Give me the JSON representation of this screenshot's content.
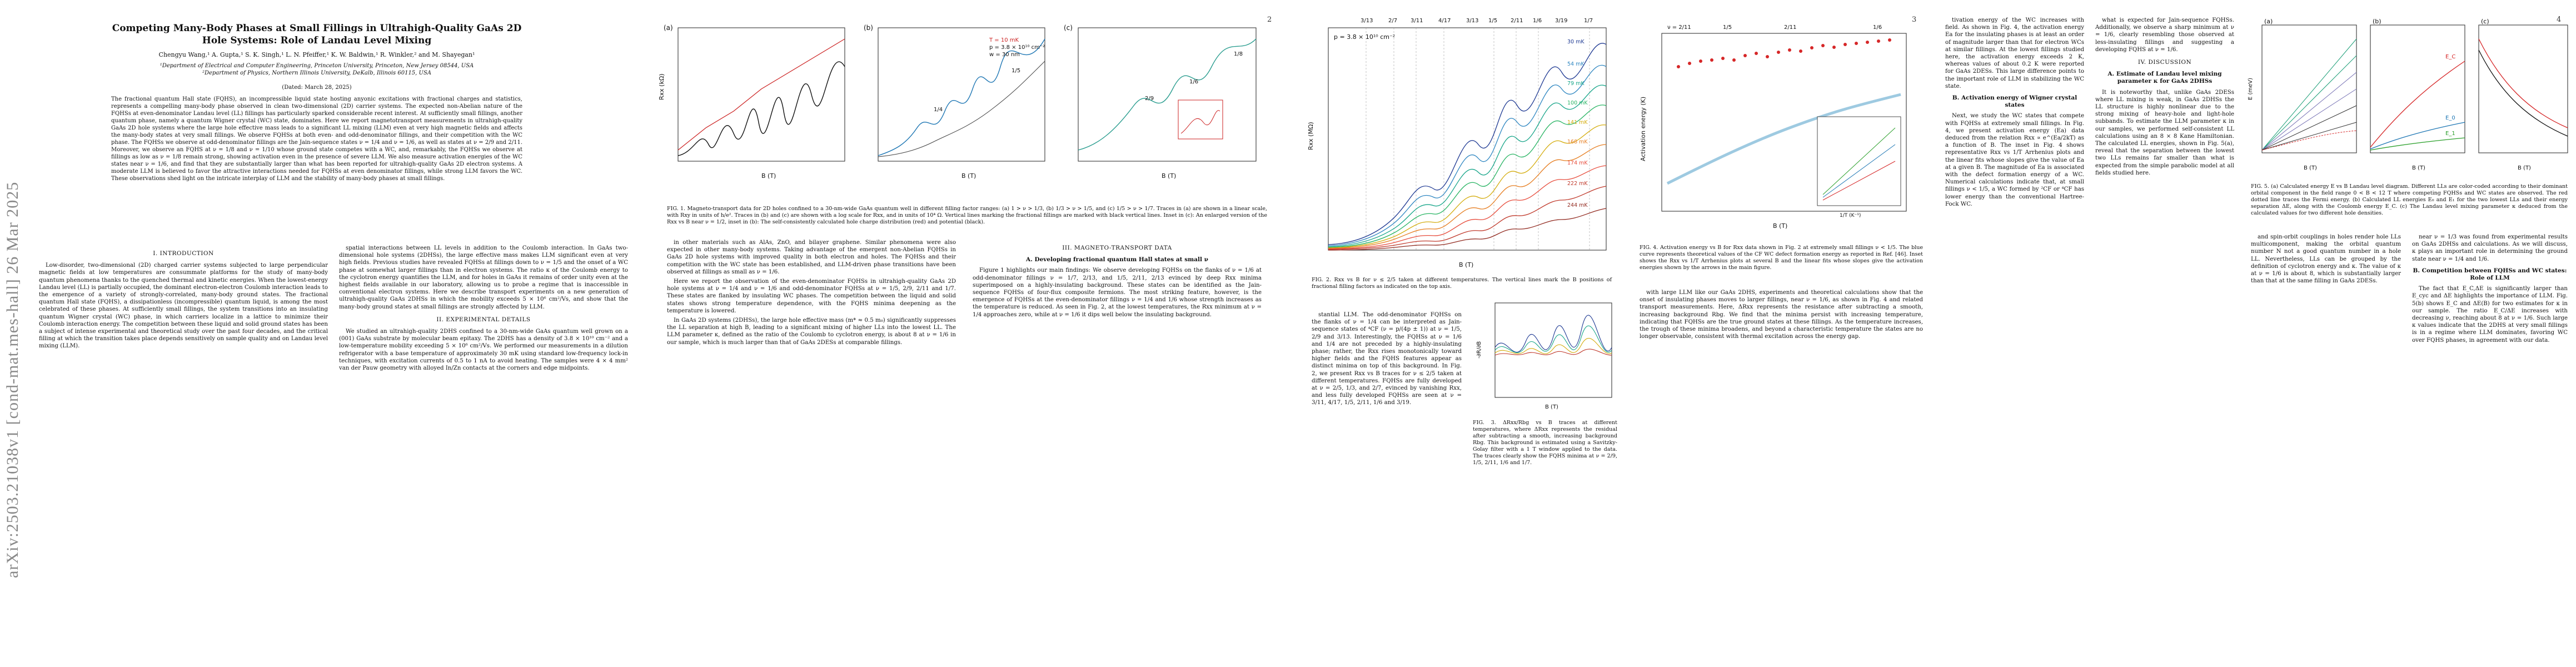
{
  "arxiv_stamp": "arXiv:2503.21038v1  [cond-mat.mes-hall]  26 Mar 2025",
  "page_numbers": [
    "2",
    "3",
    "4",
    "5"
  ],
  "title": "Competing Many-Body Phases at Small Fillings in Ultrahigh-Quality GaAs 2D Hole Systems: Role of Landau Level Mixing",
  "authors": "Chengyu Wang,¹ A. Gupta,¹ S. K. Singh,¹ L. N. Pfeiffer,¹ K. W. Baldwin,¹ R. Winkler,² and M. Shayegan¹",
  "affiliations": [
    "¹Department of Electrical and Computer Engineering, Princeton University, Princeton, New Jersey 08544, USA",
    "²Department of Physics, Northern Illinois University, DeKalb, Illinois 60115, USA"
  ],
  "date": "(Dated: March 28, 2025)",
  "abstract": "The fractional quantum Hall state (FQHS), an incompressible liquid state hosting anyonic excitations with fractional charges and statistics, represents a compelling many-body phase observed in clean two-dimensional (2D) carrier systems. The expected non-Abelian nature of the FQHSs at even-denominator Landau level (LL) fillings has particularly sparked considerable recent interest. At sufficiently small fillings, another quantum phase, namely a quantum Wigner crystal (WC) state, dominates. Here we report magnetotransport measurements in ultrahigh-quality GaAs 2D hole systems where the large hole effective mass leads to a significant LL mixing (LLM) even at very high magnetic fields and affects the many-body states at very small fillings. We observe FQHSs at both even- and odd-denominator fillings, and their competition with the WC phase. The FQHSs we observe at odd-denominator fillings are the Jain-sequence states ν = 1/4 and ν = 1/6, as well as states at ν = 2/9 and 2/11. Moreover, we observe an FQHS at ν = 1/8 and ν = 1/10 whose ground state competes with a WC, and, remarkably, the FQHSs we observe at fillings as low as ν = 1/8 remain strong, showing activation even in the presence of severe LLM. We also measure activation energies of the WC states near ν = 1/6, and find that they are substantially larger than what has been reported for ultrahigh-quality GaAs 2D electron systems. A moderate LLM is believed to favor the attractive interactions needed for FQHSs at even denominator fillings, while strong LLM favors the WC. These observations shed light on the intricate interplay of LLM and the stability of many-body phases at small fillings.",
  "p1": {
    "intro_heading": "I.  INTRODUCTION",
    "intro_left": "Low-disorder, two-dimensional (2D) charged carrier systems subjected to large perpendicular magnetic fields at low temperatures are consummate platforms for the study of many-body quantum phenomena thanks to the quenched thermal and kinetic energies. When the lowest-energy Landau level (LL) is partially occupied, the dominant electron-electron Coulomb interaction leads to the emergence of a variety of strongly-correlated, many-body ground states. The fractional quantum Hall state (FQHS), a dissipationless (incompressible) quantum liquid, is among the most celebrated of these phases. At sufficiently small fillings, the system transitions into an insulating quantum Wigner crystal (WC) phase, in which carriers localize in a lattice to minimize their Coulomb interaction energy. The competition between these liquid and solid ground states has been a subject of intense experimental and theoretical study over the past four decades, and the critical filling at which the transition takes place depends sensitively on sample quality and on Landau level mixing (LLM).",
    "intro_right": "spatial interactions between LL levels in addition to the Coulomb interaction. In GaAs two-dimensional hole systems (2DHSs), the large effective mass makes LLM significant even at very high fields. Previous studies have revealed FQHSs at fillings down to ν = 1/5 and the onset of a WC phase at somewhat larger fillings than in electron systems. The ratio κ of the Coulomb energy to the cyclotron energy quantifies the LLM, and for holes in GaAs it remains of order unity even at the highest fields available in our laboratory, allowing us to probe a regime that is inaccessible in conventional electron systems. Here we describe transport experiments on a new generation of ultrahigh-quality GaAs 2DHSs in which the mobility exceeds 5 × 10⁶ cm²/Vs, and show that the many-body ground states at small fillings are strongly affected by LLM.",
    "exp_heading": "II.  EXPERIMENTAL DETAILS",
    "exp_text": "We studied an ultrahigh-quality 2DHS confined to a 30-nm-wide GaAs quantum well grown on a (001) GaAs substrate by molecular beam epitaxy. The 2DHS has a density of 3.8 × 10¹⁰ cm⁻² and a low-temperature mobility exceeding 5 × 10⁶ cm²/Vs. We performed our measurements in a dilution refrigerator with a base temperature of approximately 30 mK using standard low-frequency lock-in techniques, with excitation currents of 0.5 to 1 nA to avoid heating. The samples were 4 × 4 mm² van der Pauw geometry with alloyed In/Zn contacts at the corners and edge midpoints."
  },
  "fig1": {
    "panels": [
      "(a)",
      "(b)",
      "(c)"
    ],
    "xlabel": "B (T)",
    "ylabel": "Rxx (kΩ)",
    "legend": [
      "T = 10 mK",
      "p = 3.8 × 10¹⁰ cm⁻²",
      "w = 30 nm"
    ],
    "annotations": [
      "1/4",
      "1/5",
      "2/9",
      "1/6",
      "1/8"
    ],
    "caption": "FIG. 1. Magneto-transport data for 2D holes confined to a 30-nm-wide GaAs quantum well in different filling factor ranges: (a) 1 > ν > 1/3, (b) 1/3 > ν > 1/5, and (c) 1/5 > ν > 1/7. Traces in (a) are shown in a linear scale, with Rxy in units of h/e². Traces in (b) and (c) are shown with a log scale for Rxx, and in units of 10⁴ Ω. Vertical lines marking the fractional fillings are marked with black vertical lines. Inset in (c): An enlarged version of the Rxx vs B near ν = 1/2, inset in (b): The self-consistently calculated hole charge distribution (red) and potential (black)."
  },
  "p2": {
    "col_left_top": "in other materials such as AlAs, ZnO, and bilayer graphene. Similar phenomena were also expected in other many-body systems. Taking advantage of the emergent non-Abelian FQHSs in GaAs 2D hole systems with improved quality in both electron and holes. The FQHSs and their competition with the WC state has been established, and LLM-driven phase transitions have been observed at fillings as small as ν = 1/6.",
    "col_left_mid": "Here we report the observation of the even-denominator FQHSs in ultrahigh-quality GaAs 2D hole systems at ν = 1/4 and ν = 1/6 and odd-denominator FQHSs at ν = 1/5, 2/9, 2/11 and 1/7. These states are flanked by insulating WC phases. The competition between the liquid and solid states shows strong temperature dependence, with the FQHS minima deepening as the temperature is lowered.",
    "col_left_bottom": "In GaAs 2D systems (2DHSs), the large hole effective mass (m* ≈ 0.5 m₀) significantly suppresses the LL separation at high B, leading to a significant mixing of higher LLs into the lowest LL. The LLM parameter κ, defined as the ratio of the Coulomb to cyclotron energy, is about 8 at ν = 1/6 in our sample, which is much larger than that of GaAs 2DESs at comparable fillings.",
    "section_heading": "III.  MAGNETO-TRANSPORT DATA",
    "subsection_heading": "A.  Developing fractional quantum Hall states at small ν",
    "col_right": "Figure 1 highlights our main findings: We observe developing FQHSs on the flanks of ν = 1/6 at odd-denominator fillings ν = 1/7, 2/13, and 1/5, 2/11, 2/13 evinced by deep Rxx minima superimposed on a highly-insulating background. These states can be identified as the Jain-sequence FQHSs of four-flux composite fermions. The most striking feature, however, is the emergence of FQHSs at the even-denominator fillings ν = 1/4 and 1/6 whose strength increases as the temperature is reduced. As seen in Fig. 2, at the lowest temperatures, the Rxx minimum at ν = 1/4 approaches zero, while at ν = 1/6 it dips well below the insulating background."
  },
  "fig2": {
    "label": "p = 3.8 × 10¹⁰ cm⁻²",
    "xlabel": "B (T)",
    "ylabel": "Rxx (MΩ)",
    "top_fillings": [
      "3/13",
      "2/7",
      "3/11",
      "4/17",
      "3/13",
      "1/5",
      "2/11",
      "1/6",
      "3/19",
      "1/7"
    ],
    "temps": [
      "30 mK",
      "54 mK",
      "79 mK",
      "100 mK",
      "141 mK",
      "168 mK",
      "174 mK",
      "222 mK",
      "244 mK"
    ],
    "caption": "FIG. 2. Rxx vs B for ν ≤ 2/5 taken at different temperatures. The vertical lines mark the B positions of fractional filling factors as indicated on the top axis."
  },
  "fig3": {
    "xlabel": "B (T)",
    "ylabel": "-∂R/∂B",
    "caption": "FIG. 3. ΔRxx/Rbg vs B traces at different temperatures, where ΔRxx represents the residual after subtracting a smooth, increasing background Rbg. This background is estimated using a Savitzky-Golay filter with a 1 T window applied to the data. The traces clearly show the FQHS minima at ν = 2/9, 1/5, 2/11, 1/6 and 1/7."
  },
  "p3": {
    "col_left": "stantial LLM. The odd-denominator FQHSs on the flanks of ν = 1/4 can be interpreted as Jain-sequence states of ⁴CF (ν = p/(4p ± 1)) at ν = 1/5, 2/9 and 3/13. Interestingly, the FQHSs at ν = 1/6 and 1/4 are not preceded by a highly-insulating phase; rather, the Rxx rises monotonically toward higher fields and the FQHS features appear as distinct minima on top of this background. In Fig. 2, we present Rxx vs B traces for ν ≤ 2/5 taken at different temperatures. FQHSs are fully developed at ν = 2/5, 1/3, and 2/7, evinced by vanishing Rxx, and less fully developed FQHSs are seen at ν = 3/11, 4/17, 1/5, 2/11, 1/6 and 3/19.",
    "col_right": "with large LLM like our GaAs 2DHS, experiments and theoretical calculations show that the onset of insulating phases moves to larger fillings, near ν = 1/6, as shown in Fig. 4 and related transport measurements. Here, ΔRxx represents the resistance after subtracting a smooth, increasing background Rbg. We find that the minima persist with increasing temperature, indicating that FQHSs are the true ground states at these fillings. As the temperature increases, the trough of these minima broadens, and beyond a characteristic temperature the states are no longer observable, consistent with thermal excitation across the energy gap."
  },
  "fig4": {
    "xlabel": "B (T)",
    "ylabel": "Activation energy (K)",
    "top_labels": [
      "ν = 2/11",
      "1/5",
      "2/11",
      "1/6"
    ],
    "inset_xlabel": "1/T (K⁻¹)",
    "caption": "FIG. 4. Activation energy vs B for Rxx data shown in Fig. 2 at extremely small fillings ν < 1/5. The blue curve represents theoretical values of the CF WC defect formation energy as reported in Ref. [46]. Inset shows the Rxx vs 1/T Arrhenius plots at several B and the linear fits whose slopes give the activation energies shown by the arrows in the main figure."
  },
  "p4": {
    "col_left_top": "tivation energy of the WC increases with field. As shown in Fig. 4, the activation energy Ea for the insulating phases is at least an order of magnitude larger than that for electron WCs at similar fillings. At the lowest fillings studied here, the activation energy exceeds 2 K, whereas values of about 0.2 K were reported for GaAs 2DESs. This large difference points to the important role of LLM in stabilizing the WC state.",
    "section_b_heading": "B.  Activation energy of Wigner crystal states",
    "col_left_mid": "Next, we study the WC states that compete with FQHSs at extremely small fillings. In Fig. 4, we present activation energy (Ea) data deduced from the relation Rxx ∝ e^(Ea/2kT) as a function of B. The inset in Fig. 4 shows representative Rxx vs 1/T Arrhenius plots and the linear fits whose slopes give the value of Ea at a given B. The magnitude of Ea is associated with the defect formation energy of a WC. Numerical calculations indicate that, at small fillings ν < 1/5, a WC formed by ²CF or ⁴CF has lower energy than the conventional Hartree-Fock WC.",
    "col_right": "what is expected for Jain-sequence FQHSs. Additionally, we observe a sharp minimum at ν = 1/6, clearly resembling those observed at less-insulating fillings and suggesting a developing FQHS at ν = 1/6.",
    "discussion_heading": "IV.  DISCUSSION",
    "subsection_heading": "A.  Estimate of Landau level mixing parameter κ for GaAs 2DHSs",
    "discussion_text": "It is noteworthy that, unlike GaAs 2DESs where LL mixing is weak, in GaAs 2DHSs the LL structure is highly nonlinear due to the strong mixing of heavy-hole and light-hole subbands. To estimate the LLM parameter κ in our samples, we performed self-consistent LL calculations using an 8 × 8 Kane Hamiltonian. The calculated LL energies, shown in Fig. 5(a), reveal that the separation between the lowest two LLs remains far smaller than what is expected from the simple parabolic model at all fields studied here."
  },
  "fig5": {
    "panels": [
      "(a)",
      "(b)",
      "(c)"
    ],
    "xlabel": "B (T)",
    "ylabel_a": "E (meV)",
    "ylabel_b": "E (meV)",
    "ylabel_c": "Landau level mixing parameter κ",
    "curve_labels": [
      "E_C",
      "E_0",
      "E_1",
      "ΔE"
    ],
    "caption": "FIG. 5. (a) Calculated energy E vs B Landau level diagram. Different LLs are color-coded according to their dominant orbital component in the field range 0 < B < 12 T where competing FQHSs and WC states are observed. The red dotted line traces the Fermi energy. (b) Calculated LL energies E₀ and E₁ for the two lowest LLs and their energy separation ΔE, along with the Coulomb energy E_C. (c) The Landau level mixing parameter κ deduced from the calculated values for two different hole densities."
  },
  "p4_right": {
    "col_left": "and spin-orbit couplings in holes render hole LLs multicomponent, making the orbital quantum number N not a good quantum number in a hole LL. Nevertheless, LLs can be grouped by the definition of cyclotron energy and κ. The value of κ at ν = 1/6 is about 8, which is substantially larger than that at the same filling in GaAs 2DESs.",
    "col_right_top": "near ν = 1/3 was found from experimental results on GaAs 2DHSs and calculations. As we will discuss, κ plays an important role in determining the ground state near ν = 1/4 and 1/6.",
    "section_heading": "B.  Competition between FQHSs and WC states: Role of LLM",
    "col_right": "The fact that E_C,ΔE is significantly larger than E_cyc and ΔE highlights the importance of LLM. Fig. 5(b) shows E_C and ΔE(B) for two estimates for κ in our sample. The ratio E_C/ΔE increases with decreasing ν, reaching about 8 at ν = 1/6. Such large κ values indicate that the 2DHS at very small fillings is in a regime where LLM dominates, favoring WC over FQHS phases, in agreement with our data."
  }
}
